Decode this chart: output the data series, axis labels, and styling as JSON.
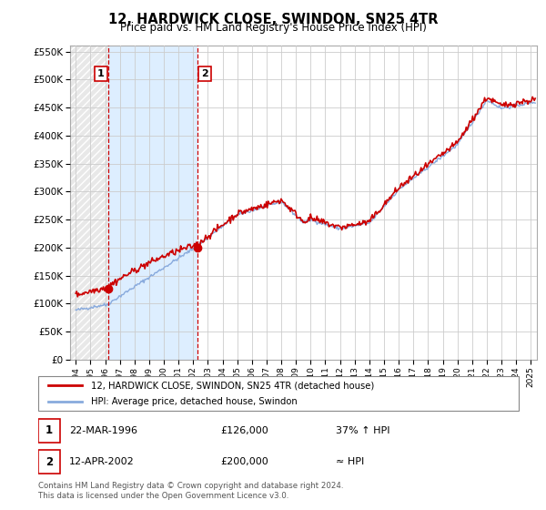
{
  "title": "12, HARDWICK CLOSE, SWINDON, SN25 4TR",
  "subtitle": "Price paid vs. HM Land Registry's House Price Index (HPI)",
  "ytick_values": [
    0,
    50000,
    100000,
    150000,
    200000,
    250000,
    300000,
    350000,
    400000,
    450000,
    500000,
    550000
  ],
  "ylim": [
    0,
    560000
  ],
  "xlim_start": 1993.6,
  "xlim_end": 2025.4,
  "hpi_color": "#88aadd",
  "hpi_fill_color": "#ddeeff",
  "price_color": "#cc0000",
  "grid_color": "#cccccc",
  "hatch_color": "#dddddd",
  "legend_line1": "12, HARDWICK CLOSE, SWINDON, SN25 4TR (detached house)",
  "legend_line2": "HPI: Average price, detached house, Swindon",
  "sale1_date": "22-MAR-1996",
  "sale1_price": "£126,000",
  "sale1_hpi": "37% ↑ HPI",
  "sale1_x": 1996.22,
  "sale1_y": 126000,
  "sale2_date": "12-APR-2002",
  "sale2_price": "£200,000",
  "sale2_hpi": "≈ HPI",
  "sale2_x": 2002.28,
  "sale2_y": 200000,
  "footer": "Contains HM Land Registry data © Crown copyright and database right 2024.\nThis data is licensed under the Open Government Licence v3.0."
}
